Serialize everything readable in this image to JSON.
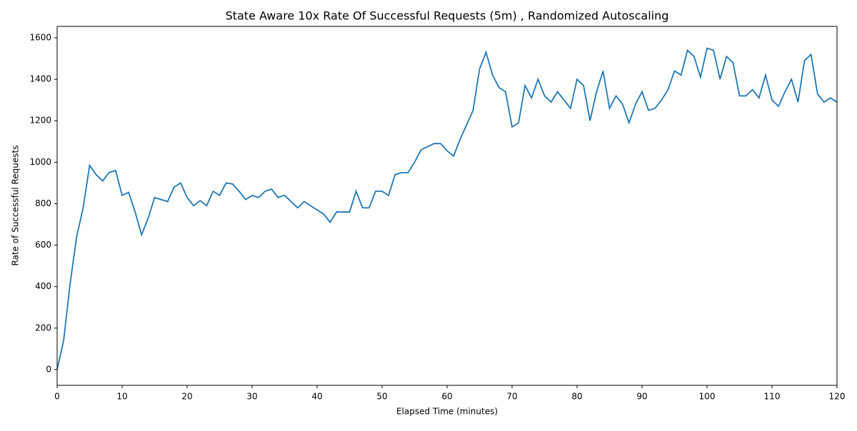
{
  "chart_data": {
    "type": "line",
    "title": "State Aware 10x Rate Of Successful Requests (5m) , Randomized Autoscaling",
    "x_label": "Elapsed Time (minutes)",
    "y_label": "Rate of Successful Requests",
    "x": [
      0,
      1,
      2,
      3,
      4,
      5,
      6,
      7,
      8,
      9,
      10,
      11,
      12,
      13,
      14,
      15,
      16,
      17,
      18,
      19,
      20,
      21,
      22,
      23,
      24,
      25,
      26,
      27,
      28,
      29,
      30,
      31,
      32,
      33,
      34,
      35,
      36,
      37,
      38,
      39,
      40,
      41,
      42,
      43,
      44,
      45,
      46,
      47,
      48,
      49,
      50,
      51,
      52,
      53,
      54,
      55,
      56,
      57,
      58,
      59,
      60,
      61,
      62,
      63,
      64,
      65,
      66,
      67,
      68,
      69,
      70,
      71,
      72,
      73,
      74,
      75,
      76,
      77,
      78,
      79,
      80,
      81,
      82,
      83,
      84,
      85,
      86,
      87,
      88,
      89,
      90,
      91,
      92,
      93,
      94,
      95,
      96,
      97,
      98,
      99,
      100,
      101,
      102,
      103,
      104,
      105,
      106,
      107,
      108,
      109,
      110,
      111,
      112,
      113,
      114,
      115,
      116,
      117,
      118,
      119,
      120
    ],
    "series": [
      {
        "color": "#1f77b4",
        "values": [
          0,
          140,
          415,
          640,
          780,
          985,
          940,
          910,
          950,
          960,
          840,
          855,
          760,
          650,
          730,
          830,
          820,
          810,
          880,
          900,
          830,
          790,
          815,
          790,
          860,
          840,
          900,
          895,
          860,
          820,
          840,
          830,
          860,
          870,
          830,
          840,
          810,
          780,
          810,
          790,
          770,
          750,
          710,
          760,
          760,
          760,
          860,
          780,
          780,
          860,
          860,
          840,
          940,
          950,
          950,
          1000,
          1060,
          1075,
          1090,
          1090,
          1055,
          1030,
          1110,
          1180,
          1250,
          1450,
          1530,
          1420,
          1360,
          1340,
          1170,
          1190,
          1370,
          1310,
          1400,
          1320,
          1290,
          1340,
          1300,
          1260,
          1400,
          1370,
          1200,
          1340,
          1440,
          1260,
          1320,
          1280,
          1190,
          1280,
          1340,
          1250,
          1260,
          1300,
          1350,
          1440,
          1420,
          1540,
          1510,
          1410,
          1550,
          1540,
          1400,
          1510,
          1480,
          1320,
          1320,
          1350,
          1310,
          1420,
          1300,
          1270,
          1340,
          1400,
          1290,
          1490,
          1520,
          1330,
          1290,
          1310,
          1290
        ]
      }
    ],
    "xlim": [
      0,
      120
    ],
    "xticks": [
      0,
      10,
      20,
      30,
      40,
      50,
      60,
      70,
      80,
      90,
      100,
      110,
      120
    ],
    "ylim": [
      -76,
      1655
    ],
    "yticks": [
      0,
      200,
      400,
      600,
      800,
      1000,
      1200,
      1400,
      1600
    ]
  }
}
